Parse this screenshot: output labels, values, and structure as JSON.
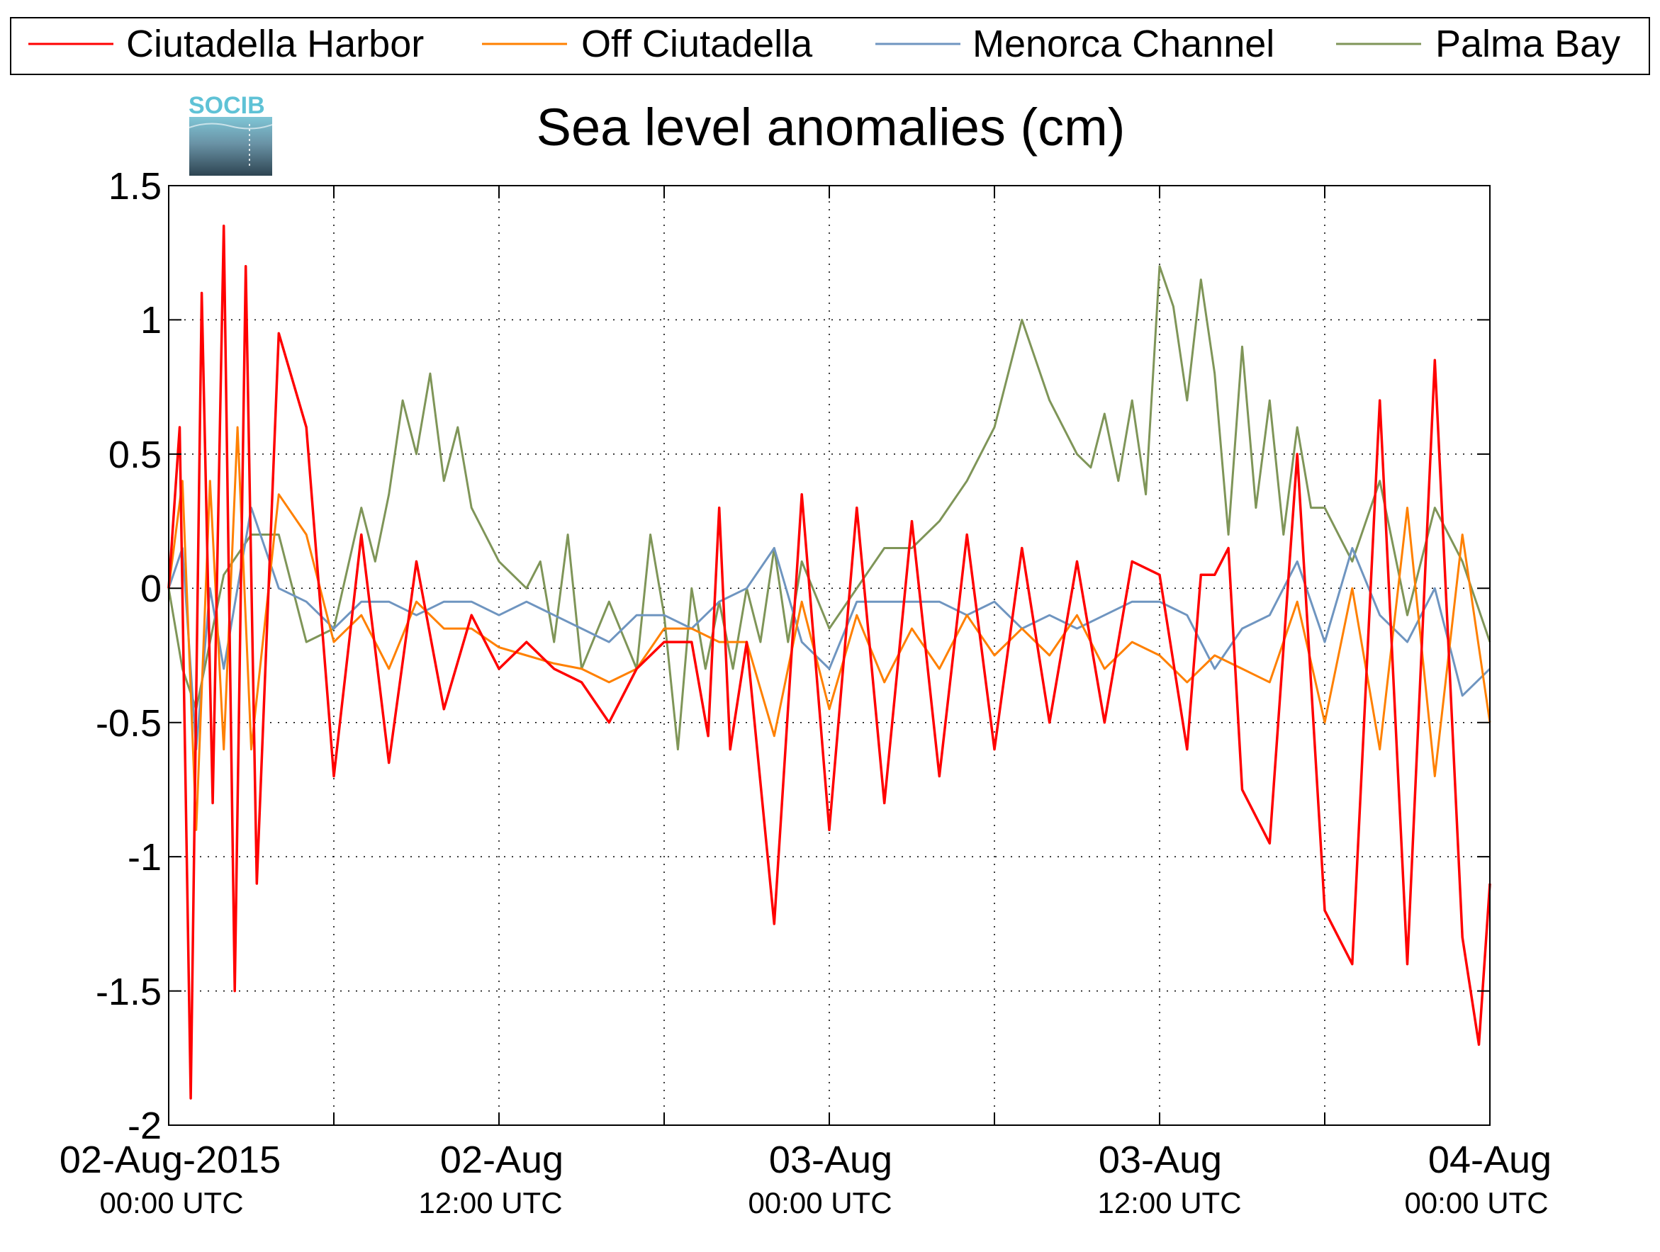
{
  "chart_data": {
    "type": "line",
    "title": "Sea level anomalies (cm)",
    "logo_text": "SOCIB",
    "ylim": [
      -2,
      1.5
    ],
    "y_ticks": [
      "1.5",
      "1",
      "0.5",
      "0",
      "-0.5",
      "-1",
      "-1.5",
      "-2"
    ],
    "x_range_hours": [
      0,
      48
    ],
    "x_tick_labels": [
      {
        "date": "02-Aug-2015",
        "time": "00:00 UTC"
      },
      {
        "date": "02-Aug",
        "time": "12:00 UTC"
      },
      {
        "date": "03-Aug",
        "time": "00:00 UTC"
      },
      {
        "date": "03-Aug",
        "time": "12:00 UTC"
      },
      {
        "date": "04-Aug",
        "time": "00:00 UTC"
      }
    ],
    "grid": true,
    "legend_position": "top",
    "series": [
      {
        "name": "Ciutadella Harbor",
        "color": "#ff0000",
        "x_hours": [
          0,
          0.4,
          0.8,
          1.2,
          1.6,
          2.0,
          2.4,
          2.8,
          3.2,
          4,
          5,
          6,
          7,
          8,
          9,
          10,
          11,
          12,
          13,
          14,
          15,
          16,
          17,
          18,
          19,
          19.6,
          20,
          20.4,
          21,
          22,
          23,
          24,
          25,
          26,
          27,
          28,
          29,
          30,
          31,
          32,
          33,
          34,
          35,
          36,
          37,
          37.5,
          38,
          38.5,
          39,
          40,
          41,
          42,
          43,
          44,
          45,
          46,
          47,
          47.6,
          48
        ],
        "values": [
          0.0,
          0.6,
          -1.9,
          1.1,
          -0.8,
          1.35,
          -1.5,
          1.2,
          -1.1,
          0.95,
          0.6,
          -0.7,
          0.2,
          -0.65,
          0.1,
          -0.45,
          -0.1,
          -0.3,
          -0.2,
          -0.3,
          -0.35,
          -0.5,
          -0.3,
          -0.2,
          -0.2,
          -0.55,
          0.3,
          -0.6,
          -0.2,
          -1.25,
          0.35,
          -0.9,
          0.3,
          -0.8,
          0.25,
          -0.7,
          0.2,
          -0.6,
          0.15,
          -0.5,
          0.1,
          -0.5,
          0.1,
          0.05,
          -0.6,
          0.05,
          0.05,
          0.15,
          -0.75,
          -0.95,
          0.5,
          -1.2,
          -1.4,
          0.7,
          -1.4,
          0.85,
          -1.3,
          -1.7,
          -1.1
        ]
      },
      {
        "name": "Off Ciutadella",
        "color": "#ff8000",
        "x_hours": [
          0,
          0.5,
          1,
          1.5,
          2,
          2.5,
          3,
          4,
          5,
          6,
          7,
          8,
          9,
          10,
          11,
          12,
          13,
          14,
          15,
          16,
          17,
          18,
          19,
          20,
          21,
          22,
          23,
          24,
          25,
          26,
          27,
          28,
          29,
          30,
          31,
          32,
          33,
          34,
          35,
          36,
          37,
          38,
          39,
          40,
          41,
          42,
          43,
          44,
          45,
          46,
          47,
          48
        ],
        "values": [
          0.0,
          0.4,
          -0.9,
          0.4,
          -0.6,
          0.6,
          -0.6,
          0.35,
          0.2,
          -0.2,
          -0.1,
          -0.3,
          -0.05,
          -0.15,
          -0.15,
          -0.22,
          -0.25,
          -0.28,
          -0.3,
          -0.35,
          -0.3,
          -0.15,
          -0.15,
          -0.2,
          -0.2,
          -0.55,
          -0.05,
          -0.45,
          -0.1,
          -0.35,
          -0.15,
          -0.3,
          -0.1,
          -0.25,
          -0.15,
          -0.25,
          -0.1,
          -0.3,
          -0.2,
          -0.25,
          -0.35,
          -0.25,
          -0.3,
          -0.35,
          -0.05,
          -0.5,
          0.0,
          -0.6,
          0.3,
          -0.7,
          0.2,
          -0.5
        ]
      },
      {
        "name": "Menorca Channel",
        "color": "#6f95c0",
        "x_hours": [
          0,
          0.5,
          1,
          1.5,
          2,
          3,
          4,
          5,
          6,
          7,
          8,
          9,
          10,
          11,
          12,
          13,
          14,
          15,
          16,
          17,
          18,
          19,
          20,
          21,
          22,
          23,
          24,
          25,
          26,
          27,
          28,
          29,
          30,
          31,
          32,
          33,
          34,
          35,
          36,
          37,
          38,
          39,
          40,
          41,
          42,
          43,
          44,
          45,
          46,
          47,
          48
        ],
        "values": [
          0.0,
          0.15,
          -0.6,
          0.0,
          -0.3,
          0.3,
          0.0,
          -0.05,
          -0.15,
          -0.05,
          -0.05,
          -0.1,
          -0.05,
          -0.05,
          -0.1,
          -0.05,
          -0.1,
          -0.15,
          -0.2,
          -0.1,
          -0.1,
          -0.15,
          -0.05,
          0.0,
          0.15,
          -0.2,
          -0.3,
          -0.05,
          -0.05,
          -0.05,
          -0.05,
          -0.1,
          -0.05,
          -0.15,
          -0.1,
          -0.15,
          -0.1,
          -0.05,
          -0.05,
          -0.1,
          -0.3,
          -0.15,
          -0.1,
          0.1,
          -0.2,
          0.15,
          -0.1,
          -0.2,
          0.0,
          -0.4,
          -0.3
        ]
      },
      {
        "name": "Palma Bay",
        "color": "#7f9558",
        "x_hours": [
          0,
          0.5,
          1,
          2,
          3,
          4,
          5,
          6,
          7,
          7.5,
          8,
          8.5,
          9,
          9.5,
          10,
          10.5,
          11,
          11.5,
          12,
          12.5,
          13,
          13.5,
          14,
          14.5,
          15,
          16,
          17,
          17.5,
          18,
          18.5,
          19,
          19.5,
          20,
          20.5,
          21,
          21.5,
          22,
          22.5,
          23,
          24,
          25,
          26,
          27,
          28,
          29,
          30,
          31,
          32,
          33,
          33.5,
          34,
          34.5,
          35,
          35.5,
          36,
          36.5,
          37,
          37.5,
          38,
          38.5,
          39,
          39.5,
          40,
          40.5,
          41,
          41.5,
          42,
          43,
          44,
          45,
          46,
          47,
          48
        ],
        "values": [
          0.0,
          -0.3,
          -0.45,
          0.05,
          0.2,
          0.2,
          -0.2,
          -0.15,
          0.3,
          0.1,
          0.35,
          0.7,
          0.5,
          0.8,
          0.4,
          0.6,
          0.3,
          0.2,
          0.1,
          0.05,
          0.0,
          0.1,
          -0.2,
          0.2,
          -0.3,
          -0.05,
          -0.3,
          0.2,
          -0.1,
          -0.6,
          0.0,
          -0.3,
          -0.05,
          -0.3,
          0.0,
          -0.2,
          0.15,
          -0.2,
          0.1,
          -0.15,
          0.0,
          0.15,
          0.15,
          0.25,
          0.4,
          0.6,
          1.0,
          0.7,
          0.5,
          0.45,
          0.65,
          0.4,
          0.7,
          0.35,
          1.2,
          1.05,
          0.7,
          1.15,
          0.8,
          0.2,
          0.9,
          0.3,
          0.7,
          0.2,
          0.6,
          0.3,
          0.3,
          0.1,
          0.4,
          -0.1,
          0.3,
          0.1,
          -0.2
        ]
      }
    ]
  }
}
